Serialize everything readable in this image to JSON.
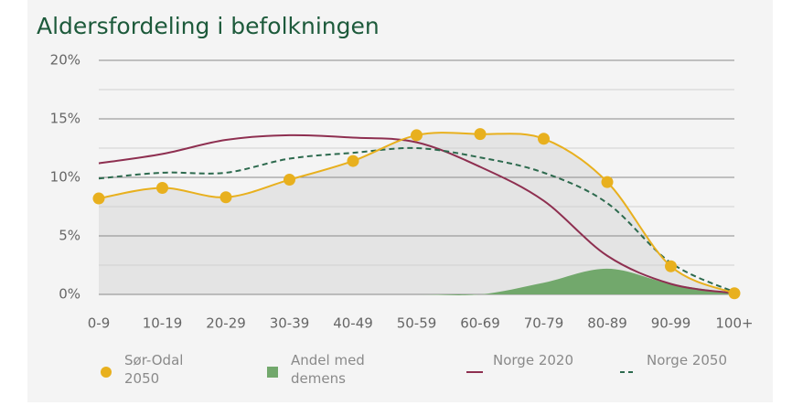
{
  "chart_data": {
    "type": "line",
    "title": "Aldersfordeling i befolkningen",
    "categories": [
      "0-9",
      "10-19",
      "20-29",
      "30-39",
      "40-49",
      "50-59",
      "60-69",
      "70-79",
      "80-89",
      "90-99",
      "100+"
    ],
    "ylim": [
      0,
      20
    ],
    "yticks": [
      {
        "value": 0,
        "label": "0%"
      },
      {
        "value": 5,
        "label": "5%"
      },
      {
        "value": 10,
        "label": "10%"
      },
      {
        "value": 15,
        "label": "15%"
      },
      {
        "value": 20,
        "label": "20%"
      }
    ],
    "minor_yticks": [
      2.5,
      7.5,
      12.5,
      17.5
    ],
    "grid": true,
    "legend": "bottom",
    "series": [
      {
        "name": "Sør-Odal 2050",
        "color": "#e8b01e",
        "kind": "line",
        "markers": true,
        "fill_under": "#e4e4e4",
        "values": [
          8.2,
          9.1,
          8.3,
          9.8,
          11.4,
          13.6,
          13.7,
          13.3,
          9.6,
          2.4,
          0.1
        ]
      },
      {
        "name": "Andel med demens",
        "color": "#72a86c",
        "kind": "area",
        "values": [
          0,
          0,
          0,
          0,
          0,
          0,
          0,
          1.0,
          2.2,
          0.9,
          0.1
        ]
      },
      {
        "name": "Norge 2020",
        "color": "#8e2f50",
        "kind": "line",
        "values": [
          11.2,
          12.0,
          13.2,
          13.6,
          13.4,
          13.0,
          10.9,
          8.0,
          3.3,
          0.9,
          0.1
        ]
      },
      {
        "name": "Norge 2050",
        "color": "#2d6a4e",
        "kind": "line",
        "dashed": true,
        "values": [
          9.9,
          10.4,
          10.4,
          11.6,
          12.1,
          12.5,
          11.7,
          10.4,
          7.8,
          2.7,
          0.2
        ]
      }
    ]
  }
}
